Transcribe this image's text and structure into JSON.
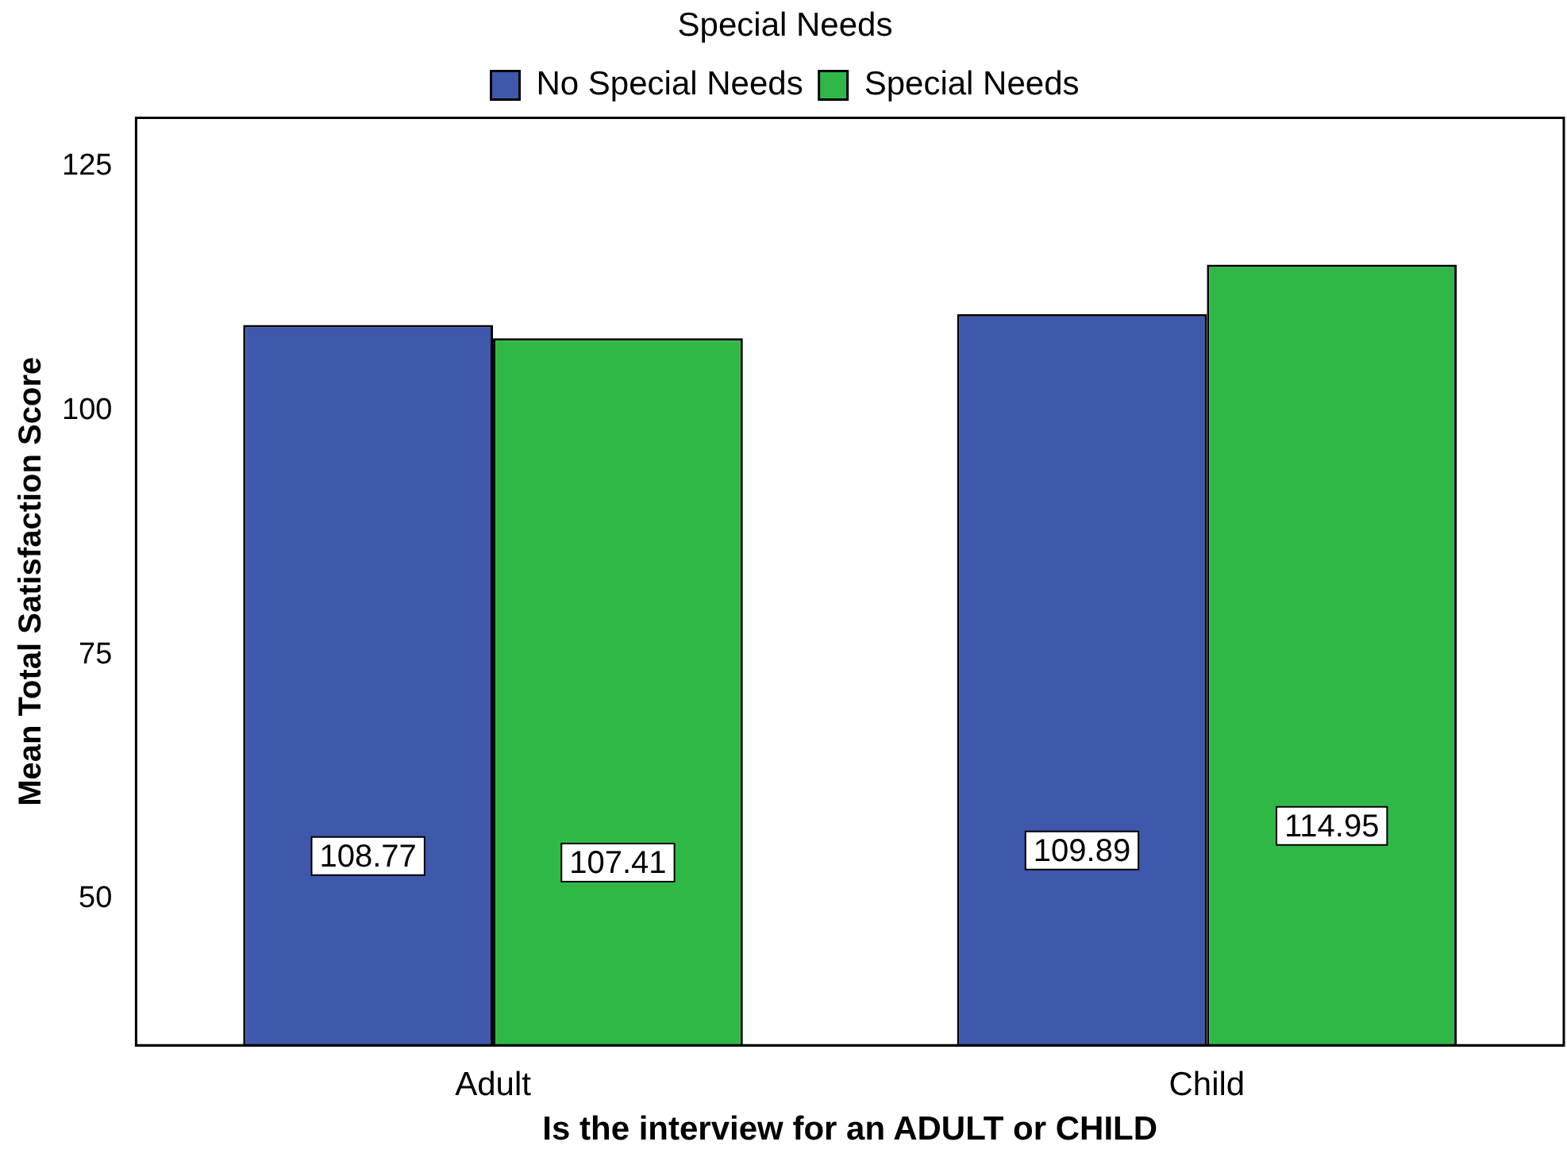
{
  "chart_data": {
    "type": "bar",
    "xlabel": "Is the interview for an ADULT or CHILD",
    "ylabel": "Mean Total Satisfaction Score",
    "legend_title": "Special Needs",
    "categories": [
      "Adult",
      "Child"
    ],
    "series": [
      {
        "name": "No Special Needs",
        "color": "#3e58ac",
        "values": [
          108.77,
          109.89
        ]
      },
      {
        "name": "Special Needs",
        "color": "#30b847",
        "values": [
          107.41,
          114.95
        ]
      }
    ],
    "ylim": [
      35,
      130
    ],
    "yticks": [
      50,
      75,
      100,
      125
    ],
    "grid": false,
    "legend": "top",
    "data_labels": true
  }
}
